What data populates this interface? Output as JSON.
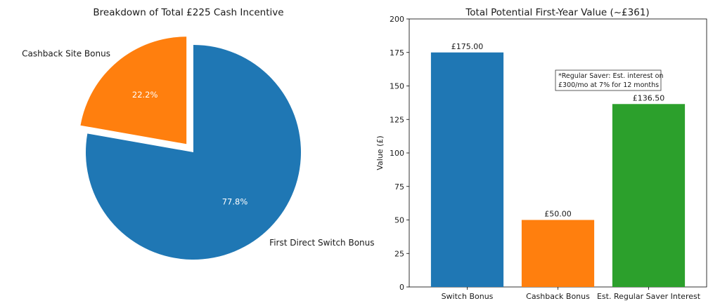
{
  "chart_data": [
    {
      "type": "pie",
      "title": "Breakdown of Total £225 Cash Incentive",
      "slices": [
        {
          "label": "Cashback Site Bonus",
          "value": 50,
          "pct_label": "22.2%",
          "color": "#ff7f0e",
          "explode": true
        },
        {
          "label": "First Direct Switch Bonus",
          "value": 175,
          "pct_label": "77.8%",
          "color": "#1f77b4",
          "explode": false
        }
      ]
    },
    {
      "type": "bar",
      "title": "Total Potential First-Year Value (~£361)",
      "categories": [
        "Switch Bonus",
        "Cashback Bonus",
        "Est. Regular Saver Interest"
      ],
      "values": [
        175.0,
        50.0,
        136.5
      ],
      "value_labels": [
        "£175.00",
        "£50.00",
        "£136.50"
      ],
      "colors": [
        "#1f77b4",
        "#ff7f0e",
        "#2ca02c"
      ],
      "ylabel": "Value (£)",
      "ylim": [
        0,
        200
      ],
      "yticks": [
        "0",
        "25",
        "50",
        "75",
        "100",
        "125",
        "150",
        "175",
        "200"
      ],
      "annotation": [
        "*Regular Saver: Est. interest on",
        "£300/mo at 7% for 12 months"
      ]
    }
  ]
}
